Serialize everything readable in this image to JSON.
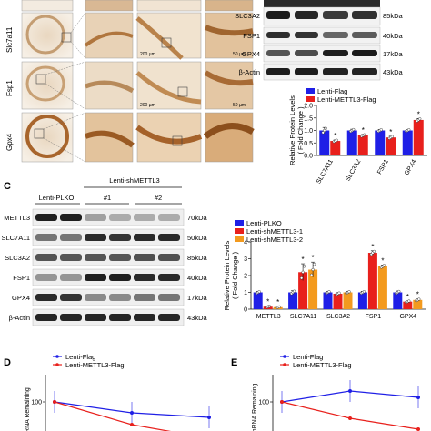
{
  "panelB_ihc": {
    "row_labels": [
      "Slc7a11",
      "Fsp1",
      "Gpx4"
    ],
    "scale_bars": [
      "200 µm",
      "50 µm",
      "200 µm",
      "50 µm"
    ]
  },
  "panelB_blot": {
    "bands": [
      {
        "name": "SLC3A2",
        "kda": "85kDa"
      },
      {
        "name": "FSP1",
        "kda": "40kDa"
      },
      {
        "name": "GPX4",
        "kda": "17kDa"
      },
      {
        "name": "β-Actin",
        "kda": "43kDa"
      }
    ]
  },
  "panelC": {
    "letter": "C",
    "header": "Lenti-shMETTL3",
    "group_ctrl": "Lenti-PLKO",
    "group_1": "#1",
    "group_2": "#2",
    "bands": [
      {
        "name": "METTL3",
        "kda": "70kDa"
      },
      {
        "name": "SLC7A11",
        "kda": "50kDa"
      },
      {
        "name": "SLC3A2",
        "kda": "85kDa"
      },
      {
        "name": "FSP1",
        "kda": "40kDa"
      },
      {
        "name": "GPX4",
        "kda": "17kDa"
      },
      {
        "name": "β-Actin",
        "kda": "43kDa"
      }
    ]
  },
  "panelD": {
    "letter": "D",
    "ylabel_fragment": "mRNA Remaining",
    "tick": "100"
  },
  "panelE": {
    "letter": "E",
    "ylabel_fragment": "11 mRNA Remaining",
    "tick": "100"
  },
  "chart_data": [
    {
      "id": "B-bar",
      "type": "bar",
      "ylabel": "Relative Protein Levels\n( Fold Change )",
      "ylim": [
        0,
        2.0
      ],
      "yticks": [
        "0.0",
        "0.5",
        "1.0",
        "1.5",
        "2.0"
      ],
      "categories": [
        "SLC7A11",
        "SLC3A2",
        "FSP1",
        "GPX4"
      ],
      "series": [
        {
          "name": "Lenti-Flag",
          "color": "#1f1fe6",
          "values": [
            1.0,
            1.0,
            1.0,
            1.0
          ],
          "errors": [
            0.12,
            0.05,
            0.04,
            0.04
          ]
        },
        {
          "name": "Lenti-METTL3-Flag",
          "color": "#e8201c",
          "values": [
            0.58,
            0.8,
            0.72,
            1.42
          ],
          "errors": [
            0.04,
            0.04,
            0.05,
            0.06
          ]
        }
      ],
      "significance": [
        "*",
        "*",
        "*",
        "*"
      ],
      "legend": "top-left"
    },
    {
      "id": "C-bar",
      "type": "bar",
      "ylabel": "Relative Protein Levels\n( Fold Change )",
      "ylim": [
        0,
        4
      ],
      "yticks": [
        "0",
        "1",
        "2",
        "3",
        "4"
      ],
      "categories": [
        "METTL3",
        "SLC7A11",
        "SLC3A2",
        "FSP1",
        "GPX4"
      ],
      "series": [
        {
          "name": "Lenti-PLKO",
          "color": "#1f1fe6",
          "values": [
            1.0,
            1.0,
            1.0,
            1.0,
            1.0
          ],
          "errors": [
            0.06,
            0.1,
            0.06,
            0.06,
            0.08
          ]
        },
        {
          "name": "Lenti-shMETTL3-1",
          "color": "#e8201c",
          "values": [
            0.15,
            2.2,
            0.92,
            3.35,
            0.45
          ],
          "errors": [
            0.04,
            0.5,
            0.06,
            0.12,
            0.05
          ]
        },
        {
          "name": "Lenti-shMETTL3-2",
          "color": "#f39a1e",
          "values": [
            0.12,
            2.35,
            1.0,
            2.55,
            0.55
          ],
          "errors": [
            0.03,
            0.45,
            0.06,
            0.08,
            0.06
          ]
        }
      ],
      "significance": [
        [
          "*",
          "*"
        ],
        [
          "*",
          "*"
        ],
        [
          "",
          ""
        ],
        [
          "*",
          "*"
        ],
        [
          "*",
          "*"
        ]
      ],
      "legend": "top-left"
    },
    {
      "id": "D-line",
      "type": "line",
      "series": [
        {
          "name": "Lenti-Flag",
          "color": "#1f1fe6",
          "x": [
            0,
            1,
            2
          ],
          "values": [
            100,
            88,
            83
          ]
        },
        {
          "name": "Lenti-METTL3-Flag",
          "color": "#e8201c",
          "x": [
            0,
            1,
            2
          ],
          "values": [
            100,
            75,
            60
          ]
        }
      ],
      "legend": "top-left"
    },
    {
      "id": "E-line",
      "type": "line",
      "series": [
        {
          "name": "Lenti-Flag",
          "color": "#1f1fe6",
          "x": [
            0,
            1,
            2
          ],
          "values": [
            100,
            112,
            105
          ]
        },
        {
          "name": "Lenti-METTL3-Flag",
          "color": "#e8201c",
          "x": [
            0,
            1,
            2
          ],
          "values": [
            100,
            82,
            70
          ]
        }
      ],
      "legend": "top-left"
    }
  ]
}
